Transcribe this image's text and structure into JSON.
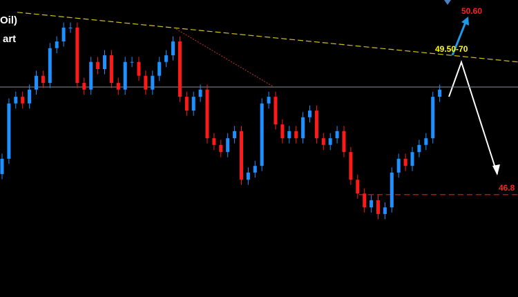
{
  "chart_data": {
    "type": "candlestick",
    "title_fragments": [
      "Oil)",
      "art"
    ],
    "open": [
      47.2,
      47.5,
      48.58,
      48.71,
      48.58,
      48.85,
      49.12,
      48.98,
      49.66,
      49.79,
      50.06,
      50.06,
      48.98,
      48.85,
      49.39,
      49.25,
      49.52,
      48.98,
      48.85,
      49.39,
      49.39,
      49.12,
      48.85,
      49.12,
      49.39,
      49.52,
      49.79,
      48.71,
      48.44,
      48.71,
      48.85,
      47.9,
      47.77,
      47.63,
      47.9,
      48.04,
      47.09,
      47.23,
      47.36,
      48.58,
      48.71,
      48.17,
      47.9,
      48.04,
      47.9,
      48.31,
      48.44,
      47.9,
      47.77,
      47.9,
      48.04,
      47.63,
      47.09,
      46.82,
      46.55,
      46.69,
      46.42,
      46.55,
      47.23,
      47.5,
      47.36,
      47.63,
      47.77,
      47.9,
      48.71
    ],
    "high": [
      47.6,
      48.68,
      48.81,
      48.81,
      48.95,
      49.22,
      49.22,
      49.76,
      49.89,
      50.16,
      50.16,
      50.16,
      49.08,
      49.49,
      49.49,
      49.62,
      49.62,
      49.08,
      49.49,
      49.49,
      49.49,
      49.22,
      49.22,
      49.49,
      49.62,
      49.89,
      49.89,
      48.81,
      48.81,
      48.95,
      48.95,
      48.0,
      47.87,
      48.0,
      48.14,
      48.14,
      47.33,
      47.46,
      48.68,
      48.81,
      48.81,
      48.27,
      48.14,
      48.14,
      48.41,
      48.54,
      48.54,
      48.0,
      48.0,
      48.14,
      48.14,
      47.73,
      47.19,
      46.92,
      46.79,
      46.79,
      46.65,
      47.33,
      47.6,
      47.6,
      47.73,
      47.87,
      48.0,
      48.81,
      48.95
    ],
    "low": [
      47.1,
      47.4,
      48.48,
      48.48,
      48.48,
      48.75,
      48.88,
      48.88,
      49.56,
      49.69,
      49.96,
      48.88,
      48.75,
      48.75,
      49.15,
      49.15,
      48.88,
      48.75,
      48.75,
      49.29,
      49.02,
      48.75,
      48.75,
      49.02,
      49.29,
      49.42,
      48.61,
      48.34,
      48.34,
      48.61,
      47.8,
      47.67,
      47.53,
      47.53,
      47.8,
      46.99,
      46.99,
      47.13,
      47.26,
      48.48,
      48.07,
      47.8,
      47.8,
      47.8,
      47.8,
      48.21,
      47.8,
      47.67,
      47.67,
      47.8,
      47.53,
      46.99,
      46.72,
      46.45,
      46.45,
      46.32,
      46.32,
      46.45,
      47.13,
      47.26,
      47.26,
      47.53,
      47.67,
      47.8,
      48.61
    ],
    "close": [
      47.5,
      48.58,
      48.71,
      48.58,
      48.85,
      49.12,
      48.98,
      49.66,
      49.79,
      50.06,
      50.06,
      48.98,
      48.85,
      49.39,
      49.25,
      49.52,
      48.98,
      48.85,
      49.39,
      49.39,
      49.12,
      48.85,
      49.12,
      49.39,
      49.52,
      49.79,
      48.71,
      48.44,
      48.71,
      48.85,
      47.9,
      47.77,
      47.63,
      47.9,
      48.04,
      47.09,
      47.23,
      47.36,
      48.58,
      48.71,
      48.17,
      47.9,
      48.04,
      47.9,
      48.31,
      48.44,
      47.9,
      47.77,
      47.9,
      48.04,
      47.63,
      47.09,
      46.82,
      46.55,
      46.69,
      46.42,
      46.55,
      47.23,
      47.5,
      47.36,
      47.63,
      47.77,
      47.9,
      48.71,
      48.85
    ],
    "up_color": "#1e90ff",
    "down_color": "#ff1a1a",
    "ylim": [
      44.8,
      50.6
    ],
    "current_level": 48.9,
    "trendline": [
      50.36,
      49.39
    ],
    "support_level": 46.8,
    "target": {
      "value": 50.6,
      "label": "50.60"
    },
    "resistance_label": "49.50-70"
  }
}
